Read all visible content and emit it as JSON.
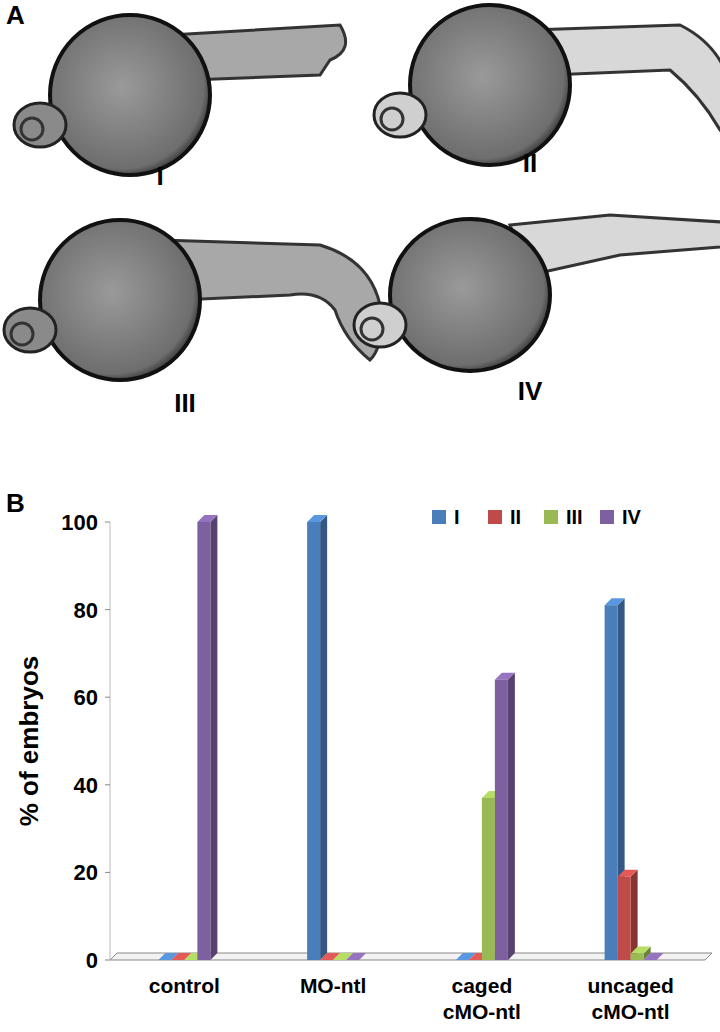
{
  "panel_labels": [
    "A",
    "B"
  ],
  "images": [
    {
      "label": "I"
    },
    {
      "label": "II"
    },
    {
      "label": "III"
    },
    {
      "label": "IV"
    }
  ],
  "chart_data": {
    "type": "bar",
    "y_label": "% of embryos",
    "categories": [
      "control",
      "MO-ntl",
      "caged cMO-ntl",
      "uncaged cMO-ntl"
    ],
    "series": [
      {
        "name": "I",
        "color": "#4a7ebb",
        "values": [
          0,
          100,
          0,
          81
        ]
      },
      {
        "name": "II",
        "color": "#be4b48",
        "values": [
          0,
          0,
          0,
          19
        ]
      },
      {
        "name": "III",
        "color": "#98b954",
        "values": [
          0,
          0,
          37,
          1.5
        ]
      },
      {
        "name": "IV",
        "color": "#7d60a0",
        "values": [
          100,
          0,
          64,
          0
        ]
      }
    ],
    "ylim": [
      0,
      100
    ],
    "yticks": [
      0,
      20,
      40,
      60,
      80,
      100
    ],
    "legend": "top-right",
    "grid": false
  }
}
